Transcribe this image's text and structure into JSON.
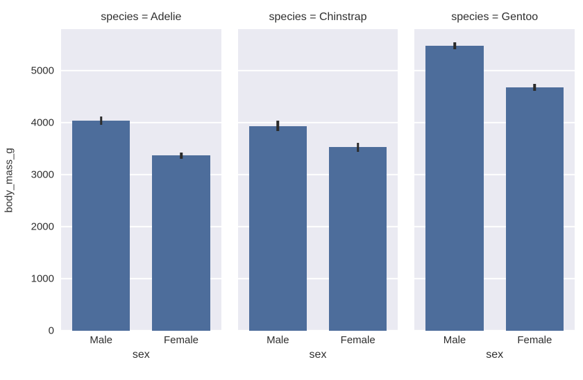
{
  "chart_data": {
    "type": "bar",
    "title": "",
    "xlabel": "sex",
    "ylabel": "body_mass_g",
    "yticks": [
      0,
      1000,
      2000,
      3000,
      4000,
      5000
    ],
    "ylim": [
      0,
      5800
    ],
    "grid": true,
    "bar_color": "#4d6d9b",
    "panel_bg": "#eaeaf2",
    "grid_color": "#ffffff",
    "error_bar_color": "#2b2b2b",
    "facets": [
      {
        "title": "species = Adelie",
        "categories": [
          "Male",
          "Female"
        ],
        "values": [
          4043,
          3369
        ],
        "errors": [
          80,
          62
        ]
      },
      {
        "title": "species = Chinstrap",
        "categories": [
          "Male",
          "Female"
        ],
        "values": [
          3939,
          3527
        ],
        "errors": [
          105,
          92
        ]
      },
      {
        "title": "species = Gentoo",
        "categories": [
          "Male",
          "Female"
        ],
        "values": [
          5485,
          4680
        ],
        "errors": [
          68,
          72
        ]
      }
    ]
  }
}
